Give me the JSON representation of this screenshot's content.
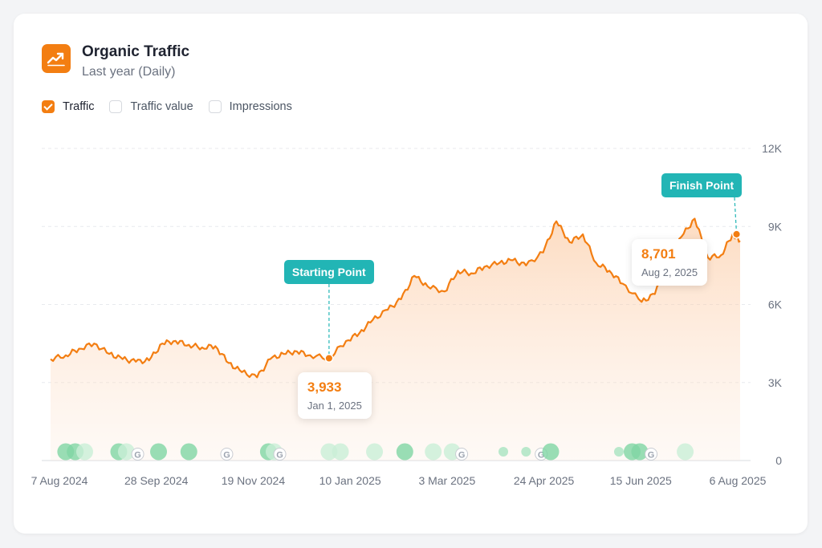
{
  "header": {
    "title": "Organic Traffic",
    "subtitle": "Last year (Daily)",
    "icon": "trending-up-icon",
    "accent": "#f37e12"
  },
  "legend": [
    {
      "label": "Traffic",
      "checked": true
    },
    {
      "label": "Traffic value",
      "checked": false
    },
    {
      "label": "Impressions",
      "checked": false
    }
  ],
  "annotations": {
    "start": {
      "callout": "Starting Point",
      "value": "3,933",
      "date": "Jan 1, 2025"
    },
    "finish": {
      "callout": "Finish Point",
      "value": "8,701",
      "date": "Aug 2, 2025"
    }
  },
  "colors": {
    "line": "#f37e12",
    "callout": "#22b5b5",
    "grid": "#e5e7eb",
    "marker_green": "#7fd6a4",
    "marker_light_green": "#c9efd7"
  },
  "chart_data": {
    "type": "line",
    "series": [
      {
        "name": "Traffic",
        "x": [
          "2024-08-07",
          "2024-08-15",
          "2024-08-22",
          "2024-08-30",
          "2024-09-07",
          "2024-09-14",
          "2024-09-21",
          "2024-09-28",
          "2024-10-05",
          "2024-10-12",
          "2024-10-19",
          "2024-10-26",
          "2024-11-02",
          "2024-11-09",
          "2024-11-16",
          "2024-11-24",
          "2024-12-01",
          "2024-12-08",
          "2024-12-15",
          "2024-12-22",
          "2025-01-01",
          "2025-01-10",
          "2025-01-17",
          "2025-01-24",
          "2025-02-01",
          "2025-02-08",
          "2025-02-15",
          "2025-02-22",
          "2025-03-03",
          "2025-03-10",
          "2025-03-17",
          "2025-03-24",
          "2025-04-01",
          "2025-04-08",
          "2025-04-15",
          "2025-04-24",
          "2025-05-01",
          "2025-05-08",
          "2025-05-15",
          "2025-05-22",
          "2025-05-29",
          "2025-06-05",
          "2025-06-15",
          "2025-06-22",
          "2025-06-29",
          "2025-07-06",
          "2025-07-13",
          "2025-07-20",
          "2025-07-27",
          "2025-08-02",
          "2025-08-06"
        ],
        "y": [
          3900,
          4050,
          4300,
          4500,
          4100,
          3900,
          3800,
          3850,
          4500,
          4600,
          4450,
          4350,
          4400,
          3750,
          3400,
          3200,
          3900,
          4100,
          4200,
          4050,
          3933,
          4600,
          4900,
          5400,
          5800,
          6200,
          7100,
          6700,
          6500,
          7300,
          7200,
          7450,
          7600,
          7700,
          7500,
          8000,
          9200,
          8400,
          8700,
          7600,
          7300,
          6800,
          6100,
          6400,
          7600,
          8600,
          9300,
          7800,
          7900,
          8701,
          8450
        ]
      }
    ],
    "xlabel": "",
    "ylabel": "",
    "x_ticks": [
      "7 Aug 2024",
      "28 Sep 2024",
      "19 Nov 2024",
      "10 Jan 2025",
      "3 Mar 2025",
      "24 Apr 2025",
      "15 Jun 2025",
      "6 Aug 2025"
    ],
    "y_ticks": [
      "0",
      "3K",
      "6K",
      "9K",
      "12K"
    ],
    "ylim": [
      0,
      12000
    ],
    "xlim": [
      "2024-08-07",
      "2025-08-06"
    ],
    "grid": true,
    "y_axis_side": "right",
    "event_markers": [
      {
        "date": "2024-08-15",
        "kind": "circle"
      },
      {
        "date": "2024-08-20",
        "kind": "circle"
      },
      {
        "date": "2024-08-25",
        "kind": "circle-light"
      },
      {
        "date": "2024-09-12",
        "kind": "circle"
      },
      {
        "date": "2024-09-16",
        "kind": "circle-light"
      },
      {
        "date": "2024-09-22",
        "kind": "google"
      },
      {
        "date": "2024-10-03",
        "kind": "circle"
      },
      {
        "date": "2024-10-19",
        "kind": "circle"
      },
      {
        "date": "2024-11-08",
        "kind": "google"
      },
      {
        "date": "2024-11-30",
        "kind": "circle"
      },
      {
        "date": "2024-12-03",
        "kind": "circle-light"
      },
      {
        "date": "2024-12-06",
        "kind": "google"
      },
      {
        "date": "2025-01-01",
        "kind": "circle-light"
      },
      {
        "date": "2025-01-07",
        "kind": "circle-light"
      },
      {
        "date": "2025-01-25",
        "kind": "circle-light"
      },
      {
        "date": "2025-02-10",
        "kind": "circle"
      },
      {
        "date": "2025-02-25",
        "kind": "circle-light"
      },
      {
        "date": "2025-03-07",
        "kind": "circle-light"
      },
      {
        "date": "2025-03-12",
        "kind": "google"
      },
      {
        "date": "2025-04-03",
        "kind": "circle-small"
      },
      {
        "date": "2025-04-15",
        "kind": "circle-small"
      },
      {
        "date": "2025-04-23",
        "kind": "google"
      },
      {
        "date": "2025-04-28",
        "kind": "circle"
      },
      {
        "date": "2025-06-03",
        "kind": "circle-small"
      },
      {
        "date": "2025-06-10",
        "kind": "circle"
      },
      {
        "date": "2025-06-14",
        "kind": "circle"
      },
      {
        "date": "2025-06-20",
        "kind": "google"
      },
      {
        "date": "2025-07-08",
        "kind": "circle-light"
      }
    ]
  }
}
